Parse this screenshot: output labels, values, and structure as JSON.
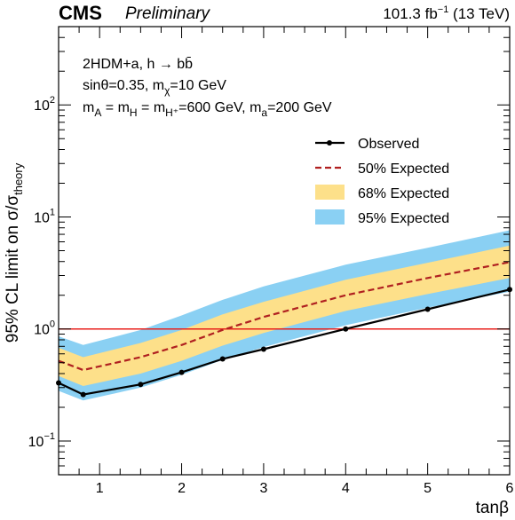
{
  "header": {
    "experiment": "CMS",
    "status": "Preliminary",
    "luminosity": "101.3 fb",
    "luminosity_exp": "−1",
    "energy": " (13 TeV)"
  },
  "annotations": {
    "line1": "2HDM+a, h → bb̄",
    "line2_pre": "sinθ=0.35, m",
    "line2_sub": "χ",
    "line2_post": "=10 GeV",
    "line3": "mₐ = mₕ = mₕ⁺=600 GeV, mₐ=200 GeV",
    "line3_parts": {
      "a_pre": "m",
      "a_sub": "A",
      "eq1": " = m",
      "h_sub": "H",
      "eq2": " = m",
      "hp_sub": "H⁺",
      "post": "=600 GeV, m",
      "ma_sub": "a",
      "end": "=200 GeV"
    }
  },
  "legend": {
    "observed": "Observed",
    "expected50": "50% Expected",
    "expected68": "68% Expected",
    "expected95": "95% Expected"
  },
  "colors": {
    "observed": "#000000",
    "expected": "#b02020",
    "band68": "#fde08a",
    "band95": "#8ad0f3",
    "reference": "#e8201c"
  },
  "chart_data": {
    "type": "line",
    "xlabel": "tanβ",
    "ylabel_pre": "95% CL limit on σ/σ",
    "ylabel_sub": "theory",
    "xlim": [
      0.5,
      6
    ],
    "ylim": [
      0.05,
      500
    ],
    "yscale": "log",
    "x_ticks": [
      1,
      2,
      3,
      4,
      5,
      6
    ],
    "y_ticks": [
      {
        "value": 0.1,
        "base": "10",
        "exp": "−1"
      },
      {
        "value": 1,
        "base": "10",
        "exp": "0"
      },
      {
        "value": 10,
        "base": "10",
        "exp": "1"
      },
      {
        "value": 100,
        "base": "10",
        "exp": "2"
      }
    ],
    "reference_line": 1,
    "x": [
      0.5,
      0.8,
      1.5,
      2.0,
      2.5,
      3.0,
      4.0,
      5.0,
      6.0
    ],
    "observed": [
      0.33,
      0.26,
      0.32,
      0.41,
      0.54,
      0.66,
      1.0,
      1.5,
      2.25
    ],
    "expected": [
      0.52,
      0.43,
      0.56,
      0.72,
      0.98,
      1.28,
      2.0,
      2.85,
      3.95
    ],
    "band68_low": [
      0.38,
      0.31,
      0.4,
      0.52,
      0.71,
      0.92,
      1.45,
      2.05,
      2.85
    ],
    "band68_high": [
      0.68,
      0.56,
      0.75,
      0.98,
      1.35,
      1.75,
      2.75,
      3.9,
      5.55
    ],
    "band95_low": [
      0.28,
      0.23,
      0.3,
      0.39,
      0.53,
      0.69,
      1.08,
      1.55,
      2.15
    ],
    "band95_high": [
      0.86,
      0.72,
      0.98,
      1.32,
      1.82,
      2.4,
      3.75,
      5.3,
      7.6
    ],
    "legend_position": "top-right"
  }
}
